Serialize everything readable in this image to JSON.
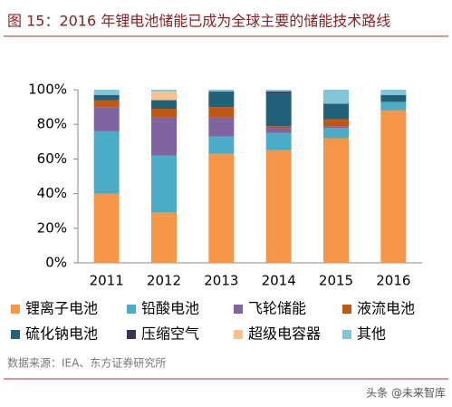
{
  "chart_data": {
    "type": "stacked_bar",
    "title": "图 15：2016 年锂电池储能已成为全球主要的储能技术路线",
    "source": "数据来源：IEA、东方证券研究所",
    "watermark": "头条 @未来智库",
    "categories": [
      "2011",
      "2012",
      "2013",
      "2014",
      "2015",
      "2016"
    ],
    "series": [
      {
        "name": "锂离子电池",
        "color": "#F79646",
        "values": [
          40,
          29,
          63,
          65,
          72,
          88
        ]
      },
      {
        "name": "铅酸电池",
        "color": "#4BACC6",
        "values": [
          36,
          33,
          10,
          10,
          6,
          5
        ]
      },
      {
        "name": "飞轮储能",
        "color": "#8064A2",
        "values": [
          14,
          22,
          11,
          3,
          1,
          0
        ]
      },
      {
        "name": "液流电池",
        "color": "#C0580F",
        "values": [
          4,
          5,
          6,
          1,
          4,
          0
        ]
      },
      {
        "name": "硫化钠电池",
        "color": "#23607A",
        "values": [
          3,
          5,
          9,
          19,
          9,
          4
        ]
      },
      {
        "name": "压缩空气",
        "color": "#403151",
        "values": [
          0,
          0,
          0,
          1,
          0,
          0
        ]
      },
      {
        "name": "超级电容器",
        "color": "#FAC090",
        "values": [
          0,
          5,
          0,
          0,
          0,
          0
        ]
      },
      {
        "name": "其他",
        "color": "#7FC6DA",
        "values": [
          3,
          1,
          1,
          1,
          8,
          3
        ]
      }
    ],
    "ylim": [
      0,
      100
    ],
    "yticks": [
      {
        "value": 0,
        "label": "0%"
      },
      {
        "value": 20,
        "label": "20%"
      },
      {
        "value": 40,
        "label": "40%"
      },
      {
        "value": 60,
        "label": "60%"
      },
      {
        "value": 80,
        "label": "80%"
      },
      {
        "value": 100,
        "label": "100%"
      }
    ]
  }
}
